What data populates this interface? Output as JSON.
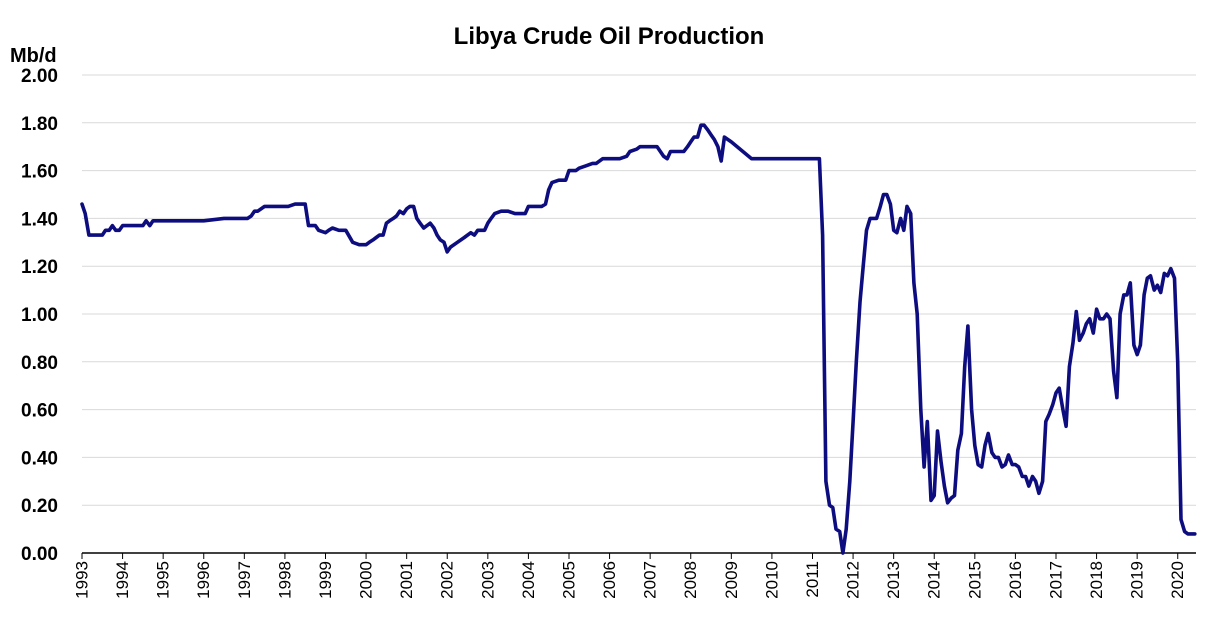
{
  "chart_data": {
    "type": "line",
    "title": "Libya Crude Oil Production",
    "ylabel": "Mb/d",
    "xlabel": "",
    "xlim": [
      1993,
      2020.45
    ],
    "ylim": [
      0,
      2
    ],
    "y_ticks": [
      "0.00",
      "0.20",
      "0.40",
      "0.60",
      "0.80",
      "1.00",
      "1.20",
      "1.40",
      "1.60",
      "1.80",
      "2.00"
    ],
    "x_ticks": [
      "1993",
      "1994",
      "1995",
      "1996",
      "1997",
      "1998",
      "1999",
      "2000",
      "2001",
      "2002",
      "2003",
      "2004",
      "2005",
      "2006",
      "2007",
      "2008",
      "2009",
      "2010",
      "2011",
      "2012",
      "2013",
      "2014",
      "2015",
      "2016",
      "2017",
      "2018",
      "2019",
      "2020"
    ],
    "grid": "horizontal",
    "legend": "none",
    "line_color": "#0d0d7f",
    "series": [
      {
        "x": [
          1993.0,
          1993.08,
          1993.17,
          1993.25,
          1993.33,
          1993.42,
          1993.5,
          1993.58,
          1993.67,
          1993.75,
          1993.83,
          1993.92,
          1994.0,
          1994.17,
          1994.33,
          1994.5,
          1994.58,
          1994.67,
          1994.75,
          1994.83,
          1995.0,
          1995.5,
          1996.0,
          1996.5,
          1996.92,
          1997.0,
          1997.08,
          1997.17,
          1997.25,
          1997.33,
          1997.5,
          1997.67,
          1997.83,
          1998.0,
          1998.08,
          1998.25,
          1998.33,
          1998.5,
          1998.58,
          1998.75,
          1998.83,
          1999.0,
          1999.08,
          1999.17,
          1999.33,
          1999.5,
          1999.67,
          1999.83,
          2000.0,
          2000.08,
          2000.17,
          2000.25,
          2000.33,
          2000.42,
          2000.5,
          2000.58,
          2000.67,
          2000.75,
          2000.83,
          2000.92,
          2001.0,
          2001.08,
          2001.17,
          2001.25,
          2001.33,
          2001.42,
          2001.5,
          2001.58,
          2001.67,
          2001.75,
          2001.83,
          2001.92,
          2002.0,
          2002.08,
          2002.25,
          2002.42,
          2002.58,
          2002.67,
          2002.75,
          2002.92,
          2003.0,
          2003.08,
          2003.17,
          2003.33,
          2003.5,
          2003.67,
          2003.83,
          2003.92,
          2004.0,
          2004.17,
          2004.33,
          2004.42,
          2004.5,
          2004.58,
          2004.75,
          2004.92,
          2005.0,
          2005.17,
          2005.25,
          2005.42,
          2005.58,
          2005.67,
          2005.83,
          2006.0,
          2006.17,
          2006.25,
          2006.42,
          2006.5,
          2006.67,
          2006.75,
          2006.83,
          2006.92,
          2007.0,
          2007.17,
          2007.33,
          2007.42,
          2007.5,
          2007.58,
          2007.67,
          2007.75,
          2007.83,
          2007.92,
          2008.0,
          2008.08,
          2008.17,
          2008.25,
          2008.33,
          2008.42,
          2008.5,
          2008.58,
          2008.67,
          2008.75,
          2008.83,
          2009.0,
          2009.5,
          2010.0,
          2010.5,
          2011.0,
          2011.08,
          2011.17,
          2011.25,
          2011.33,
          2011.42,
          2011.5,
          2011.58,
          2011.67,
          2011.75,
          2011.83,
          2011.92,
          2012.0,
          2012.08,
          2012.17,
          2012.25,
          2012.33,
          2012.42,
          2012.5,
          2012.58,
          2012.67,
          2012.75,
          2012.83,
          2012.92,
          2013.0,
          2013.08,
          2013.17,
          2013.25,
          2013.33,
          2013.42,
          2013.5,
          2013.58,
          2013.67,
          2013.75,
          2013.83,
          2013.92,
          2014.0,
          2014.08,
          2014.17,
          2014.25,
          2014.33,
          2014.42,
          2014.5,
          2014.58,
          2014.67,
          2014.75,
          2014.83,
          2014.92,
          2015.0,
          2015.08,
          2015.17,
          2015.25,
          2015.33,
          2015.42,
          2015.5,
          2015.58,
          2015.67,
          2015.75,
          2015.83,
          2015.92,
          2016.0,
          2016.08,
          2016.17,
          2016.25,
          2016.33,
          2016.42,
          2016.5,
          2016.58,
          2016.67,
          2016.75,
          2016.83,
          2016.92,
          2017.0,
          2017.08,
          2017.17,
          2017.25,
          2017.33,
          2017.42,
          2017.5,
          2017.58,
          2017.67,
          2017.75,
          2017.83,
          2017.92,
          2018.0,
          2018.08,
          2018.17,
          2018.25,
          2018.33,
          2018.42,
          2018.5,
          2018.58,
          2018.67,
          2018.75,
          2018.83,
          2018.92,
          2019.0,
          2019.08,
          2019.17,
          2019.25,
          2019.33,
          2019.42,
          2019.5,
          2019.58,
          2019.67,
          2019.75,
          2019.83,
          2019.92,
          2020.0,
          2020.08,
          2020.17,
          2020.25,
          2020.33,
          2020.42
        ],
        "y": [
          1.46,
          1.42,
          1.33,
          1.33,
          1.33,
          1.33,
          1.33,
          1.35,
          1.35,
          1.37,
          1.35,
          1.35,
          1.37,
          1.37,
          1.37,
          1.37,
          1.39,
          1.37,
          1.39,
          1.39,
          1.39,
          1.39,
          1.39,
          1.4,
          1.4,
          1.4,
          1.4,
          1.41,
          1.43,
          1.43,
          1.45,
          1.45,
          1.45,
          1.45,
          1.45,
          1.46,
          1.46,
          1.46,
          1.37,
          1.37,
          1.35,
          1.34,
          1.35,
          1.36,
          1.35,
          1.35,
          1.3,
          1.29,
          1.29,
          1.3,
          1.31,
          1.32,
          1.33,
          1.33,
          1.38,
          1.39,
          1.4,
          1.41,
          1.43,
          1.42,
          1.44,
          1.45,
          1.45,
          1.4,
          1.38,
          1.36,
          1.37,
          1.38,
          1.36,
          1.33,
          1.31,
          1.3,
          1.26,
          1.28,
          1.3,
          1.32,
          1.34,
          1.33,
          1.35,
          1.35,
          1.38,
          1.4,
          1.42,
          1.43,
          1.43,
          1.42,
          1.42,
          1.42,
          1.45,
          1.45,
          1.45,
          1.46,
          1.52,
          1.55,
          1.56,
          1.56,
          1.6,
          1.6,
          1.61,
          1.62,
          1.63,
          1.63,
          1.65,
          1.65,
          1.65,
          1.65,
          1.66,
          1.68,
          1.69,
          1.7,
          1.7,
          1.7,
          1.7,
          1.7,
          1.66,
          1.65,
          1.68,
          1.68,
          1.68,
          1.68,
          1.68,
          1.7,
          1.72,
          1.74,
          1.74,
          1.79,
          1.79,
          1.77,
          1.75,
          1.73,
          1.7,
          1.64,
          1.74,
          1.72,
          1.65,
          1.65,
          1.65,
          1.65,
          1.65,
          1.65,
          1.33,
          0.3,
          0.2,
          0.19,
          0.1,
          0.09,
          0.0,
          0.1,
          0.3,
          0.55,
          0.8,
          1.05,
          1.2,
          1.35,
          1.4,
          1.4,
          1.4,
          1.45,
          1.5,
          1.5,
          1.46,
          1.35,
          1.34,
          1.4,
          1.35,
          1.45,
          1.42,
          1.13,
          1.0,
          0.6,
          0.36,
          0.55,
          0.22,
          0.24,
          0.51,
          0.38,
          0.28,
          0.21,
          0.23,
          0.24,
          0.43,
          0.5,
          0.78,
          0.95,
          0.6,
          0.45,
          0.37,
          0.36,
          0.45,
          0.5,
          0.42,
          0.4,
          0.4,
          0.36,
          0.37,
          0.41,
          0.37,
          0.37,
          0.36,
          0.32,
          0.32,
          0.28,
          0.32,
          0.3,
          0.25,
          0.3,
          0.55,
          0.58,
          0.62,
          0.67,
          0.69,
          0.6,
          0.53,
          0.78,
          0.88,
          1.01,
          0.89,
          0.92,
          0.96,
          0.98,
          0.92,
          1.02,
          0.98,
          0.98,
          1.0,
          0.98,
          0.76,
          0.65,
          1.0,
          1.08,
          1.08,
          1.13,
          0.87,
          0.83,
          0.87,
          1.08,
          1.15,
          1.16,
          1.1,
          1.12,
          1.09,
          1.17,
          1.16,
          1.19,
          1.15,
          0.8,
          0.14,
          0.09,
          0.08,
          0.08,
          0.08
        ]
      }
    ]
  }
}
